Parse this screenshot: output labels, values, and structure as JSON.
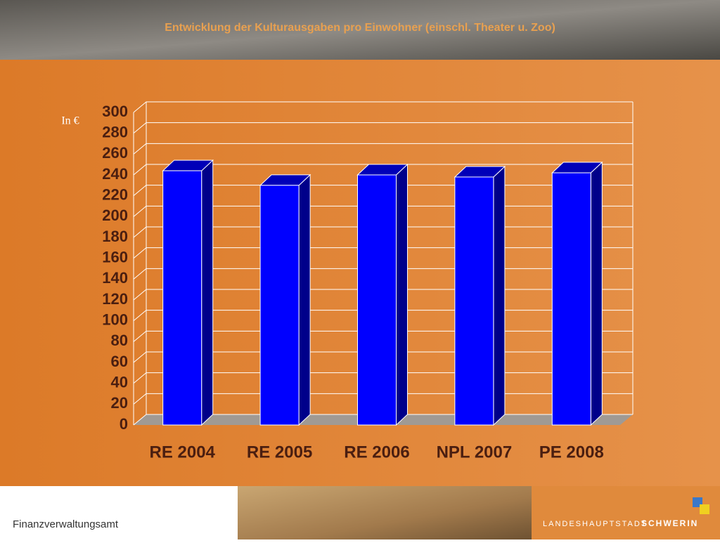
{
  "header": {
    "title": "Entwicklung der Kulturausgaben pro Einwohner (einschl. Theater u. Zoo)"
  },
  "chart_data": {
    "type": "bar",
    "y_label": "In €",
    "categories": [
      "RE 2004",
      "RE 2005",
      "RE 2006",
      "NPL 2007",
      "PE 2008"
    ],
    "values": [
      244,
      230,
      240,
      238,
      242
    ],
    "color": "#0000ff",
    "ylim": [
      0,
      300
    ],
    "yticks": [
      0,
      20,
      40,
      60,
      80,
      100,
      120,
      140,
      160,
      180,
      200,
      220,
      240,
      260,
      280,
      300
    ],
    "grid": true
  },
  "footer": {
    "left": "Finanzverwaltungsamt",
    "logo_prefix": "LANDESHAUPTSTADT",
    "logo_name": "SCHWERIN"
  }
}
